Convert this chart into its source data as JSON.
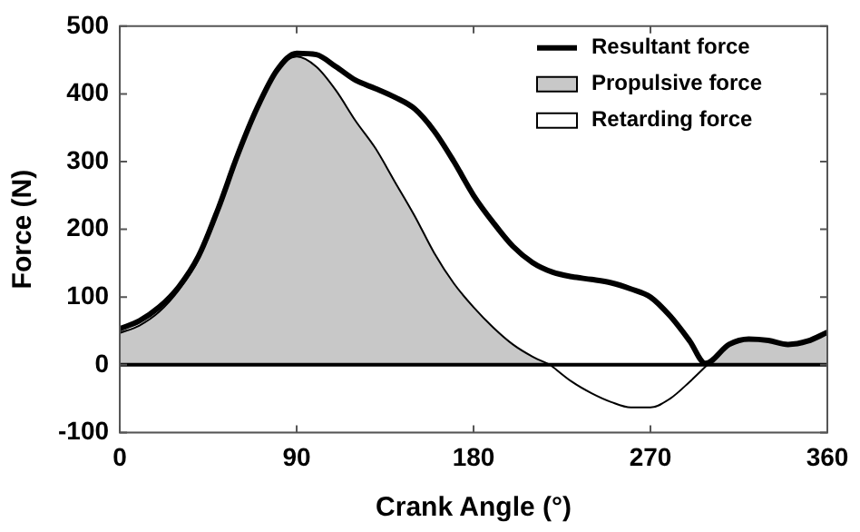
{
  "chart_data": {
    "type": "line",
    "xlabel": "Crank Angle (°)",
    "ylabel": "Force (N)",
    "xlim": [
      0,
      360
    ],
    "xticks": [
      0,
      90,
      180,
      270,
      360
    ],
    "ylim": [
      -100,
      500
    ],
    "yticks": [
      -100,
      0,
      100,
      200,
      300,
      400,
      500
    ],
    "grid": false,
    "legend": "top right",
    "marker": "none",
    "line_style": "solid",
    "ref_lines": [
      {
        "axis": "y",
        "value": 0,
        "color": "#000000"
      }
    ],
    "series": [
      {
        "name": "Propulsive force",
        "type": "area",
        "color": "#c8c8c8",
        "x": [
          0,
          10,
          20,
          30,
          40,
          50,
          60,
          70,
          80,
          90,
          100,
          110,
          120,
          130,
          140,
          150,
          160,
          170,
          180,
          190,
          200,
          210,
          219,
          null,
          299,
          310,
          320,
          330,
          340,
          350,
          360
        ],
        "values": [
          47,
          58,
          78,
          110,
          155,
          225,
          305,
          380,
          435,
          455,
          440,
          405,
          360,
          320,
          270,
          220,
          165,
          120,
          85,
          55,
          30,
          12,
          0,
          null,
          0,
          30,
          38,
          36,
          30,
          35,
          48
        ]
      },
      {
        "name": "Retarding force",
        "type": "area",
        "color": "#ffffff",
        "x": [
          219,
          230,
          240,
          250,
          260,
          270,
          280,
          290,
          299
        ],
        "values": [
          0,
          -25,
          -42,
          -55,
          -63,
          -63,
          -50,
          -25,
          0
        ]
      },
      {
        "name": "Resultant force",
        "type": "line",
        "color": "#000000",
        "x": [
          0,
          10,
          20,
          30,
          40,
          50,
          60,
          70,
          80,
          90,
          100,
          110,
          120,
          130,
          140,
          150,
          160,
          170,
          180,
          190,
          200,
          210,
          220,
          230,
          240,
          250,
          260,
          270,
          280,
          290,
          298,
          310,
          320,
          330,
          340,
          350,
          360
        ],
        "values": [
          53,
          65,
          85,
          115,
          160,
          230,
          310,
          380,
          435,
          460,
          458,
          440,
          420,
          408,
          395,
          378,
          345,
          300,
          250,
          210,
          175,
          151,
          137,
          130,
          126,
          121,
          112,
          100,
          72,
          35,
          2,
          30,
          38,
          36,
          30,
          35,
          48
        ]
      }
    ]
  }
}
